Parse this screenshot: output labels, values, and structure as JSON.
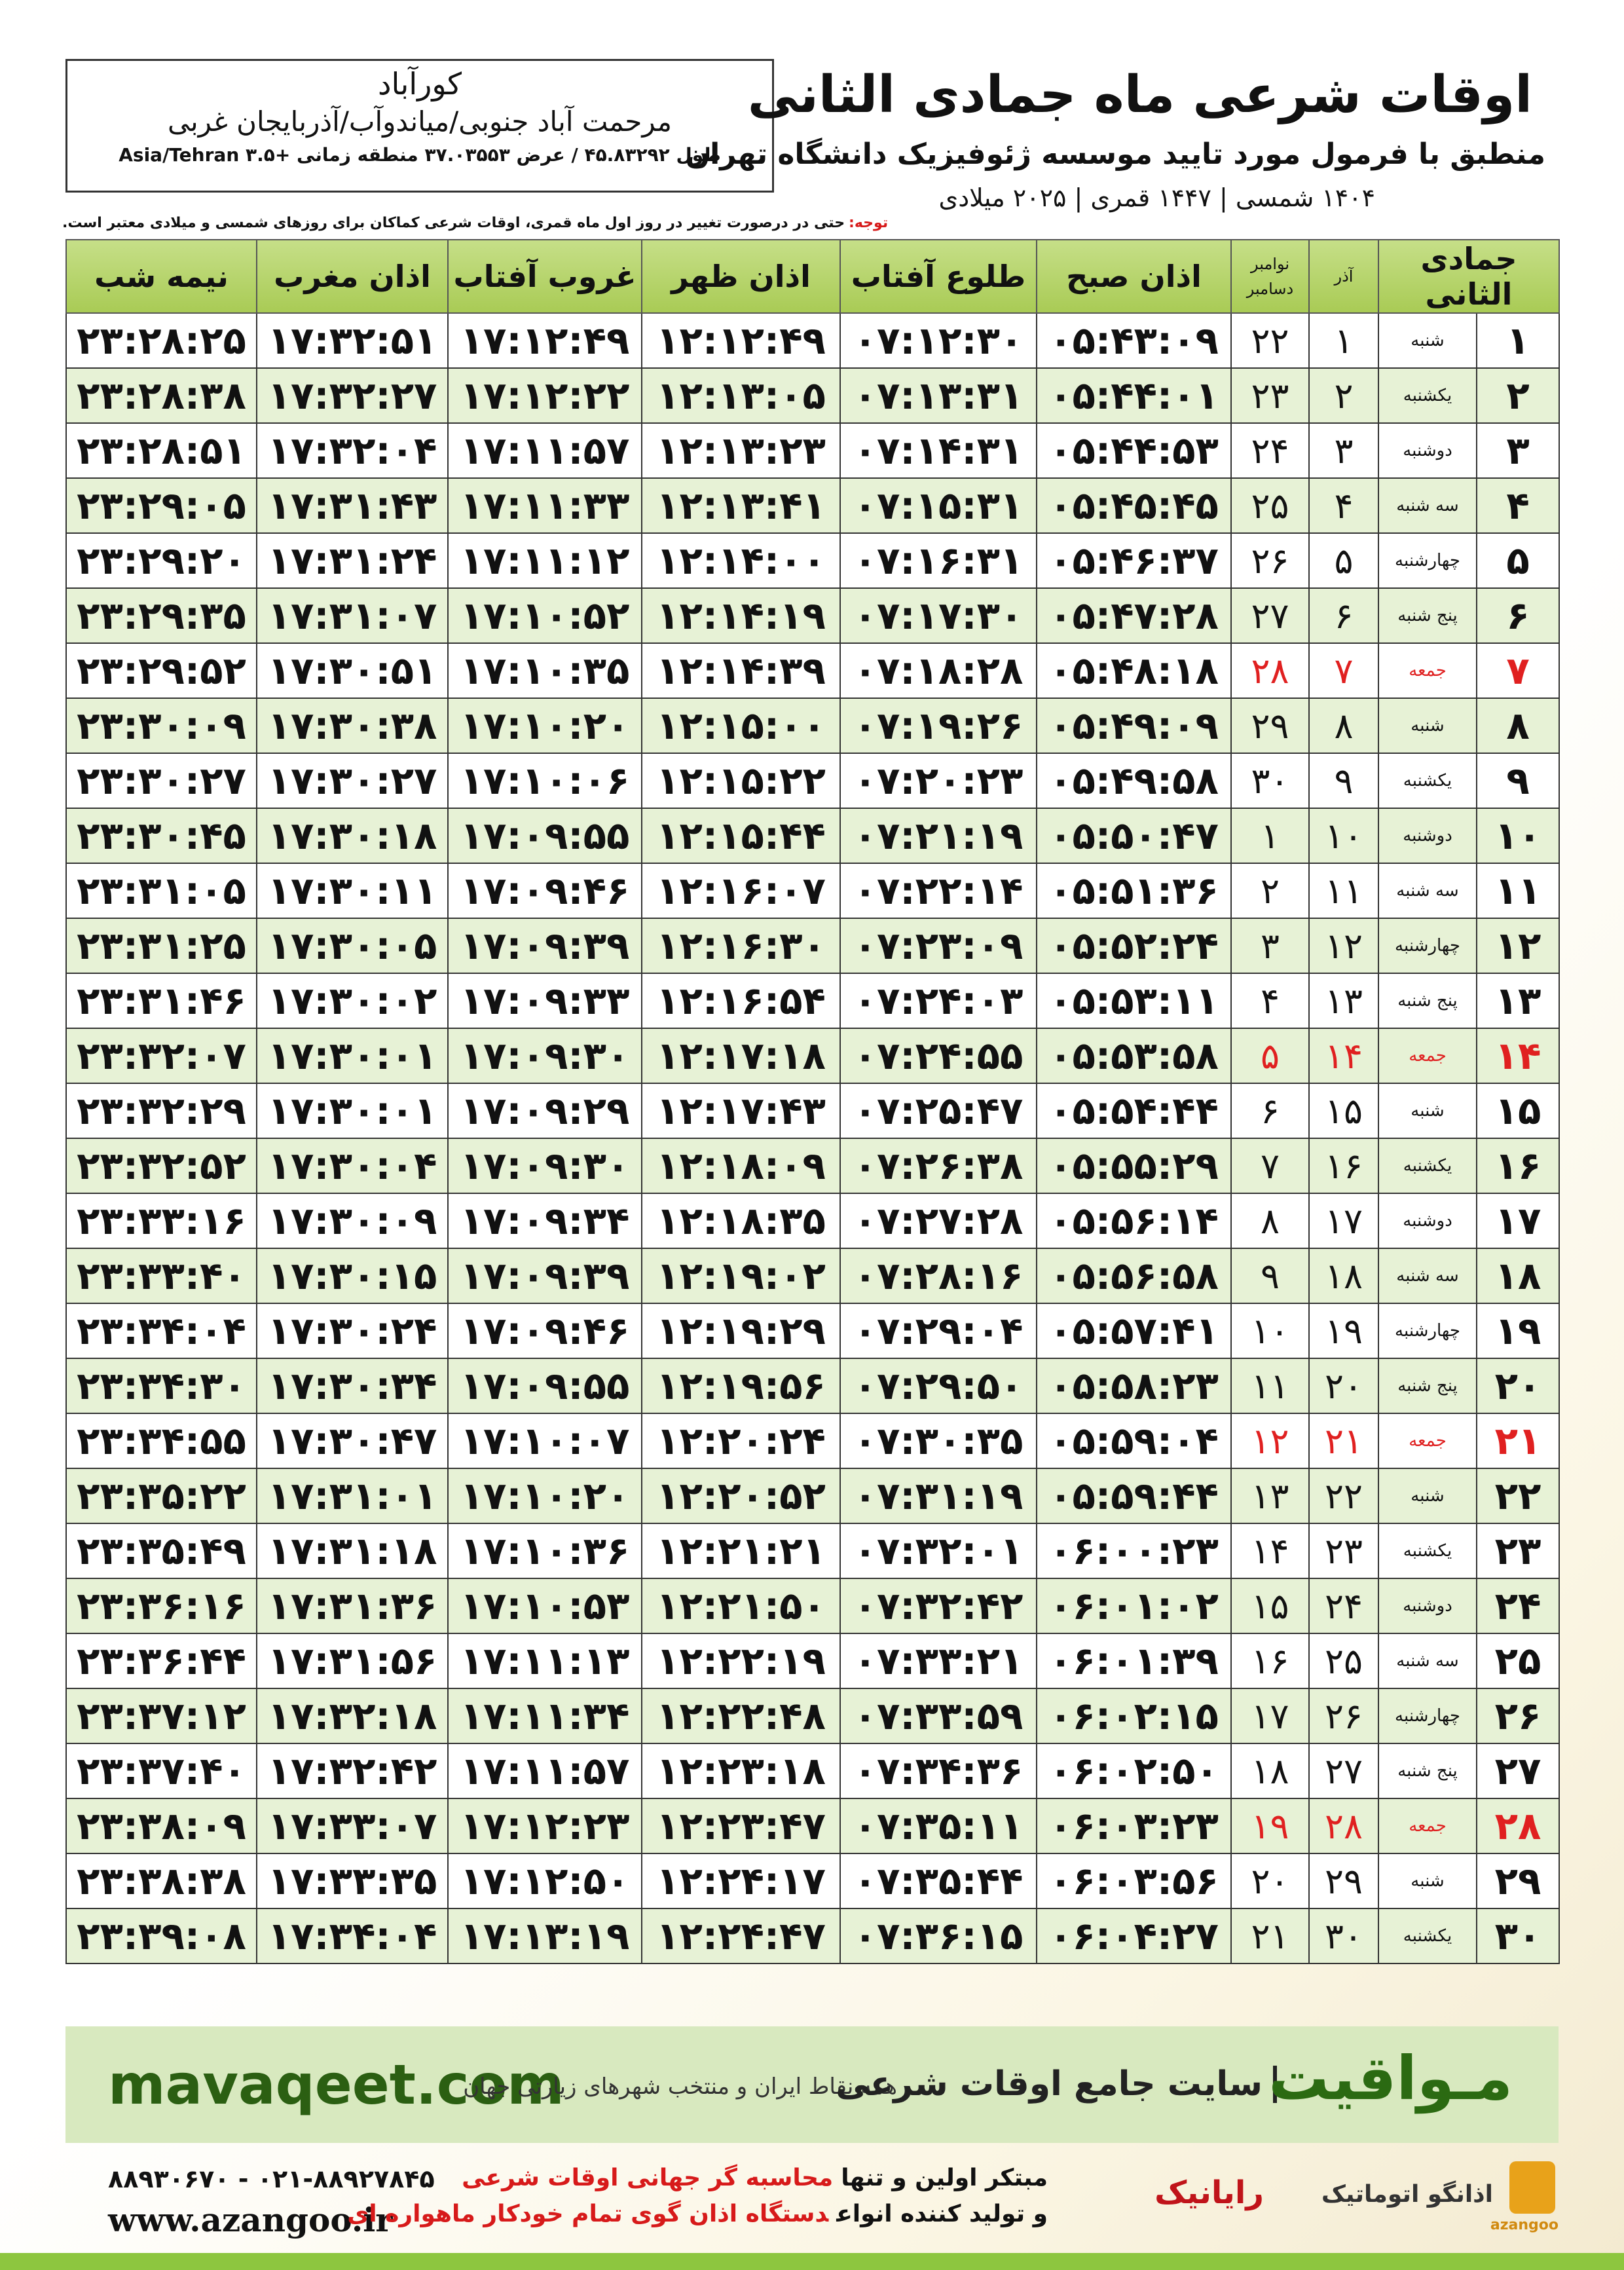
{
  "header": {
    "title": "اوقات شرعی ماه جمادی الثانی",
    "subtitle": "منطبق با فرمول مورد تایید موسسه ژئوفیزیک دانشگاه تهران",
    "years": "۱۴۰۴ شمسی | ۱۴۴۷ قمری | ۲۰۲۵ میلادی"
  },
  "location": {
    "city": "کورآباد",
    "address": "مرحمت آباد جنوبی/میاندوآب/آذربایجان غربی",
    "coords": "طول ۴۵.۸۳۲۹۲ / عرض ۳۷.۰۳۵۵۳ منطقه زمانی +۳.۵ Asia/Tehran"
  },
  "note": {
    "label": "توجه:",
    "text": "حتی در درصورت تغییر در روز اول ماه قمری، اوقات شرعی کماکان برای روزهای شمسی و میلادی معتبر است."
  },
  "table": {
    "columns": [
      "جمادی الثانی",
      "آذر",
      [
        "نوامبر",
        "دسامبر"
      ],
      "اذان صبح",
      "طلوع آفتاب",
      "اذان ظهر",
      "غروب آفتاب",
      "اذان مغرب",
      "نیمه شب"
    ],
    "rows": [
      [
        "۱",
        "شنبه",
        "۱",
        "۲۲",
        "۰۵:۴۳:۰۹",
        "۰۷:۱۲:۳۰",
        "۱۲:۱۲:۴۹",
        "۱۷:۱۲:۴۹",
        "۱۷:۳۲:۵۱",
        "۲۳:۲۸:۲۵"
      ],
      [
        "۲",
        "یکشنبه",
        "۲",
        "۲۳",
        "۰۵:۴۴:۰۱",
        "۰۷:۱۳:۳۱",
        "۱۲:۱۳:۰۵",
        "۱۷:۱۲:۲۲",
        "۱۷:۳۲:۲۷",
        "۲۳:۲۸:۳۸"
      ],
      [
        "۳",
        "دوشنبه",
        "۳",
        "۲۴",
        "۰۵:۴۴:۵۳",
        "۰۷:۱۴:۳۱",
        "۱۲:۱۳:۲۳",
        "۱۷:۱۱:۵۷",
        "۱۷:۳۲:۰۴",
        "۲۳:۲۸:۵۱"
      ],
      [
        "۴",
        "سه شنبه",
        "۴",
        "۲۵",
        "۰۵:۴۵:۴۵",
        "۰۷:۱۵:۳۱",
        "۱۲:۱۳:۴۱",
        "۱۷:۱۱:۳۳",
        "۱۷:۳۱:۴۳",
        "۲۳:۲۹:۰۵"
      ],
      [
        "۵",
        "چهارشنبه",
        "۵",
        "۲۶",
        "۰۵:۴۶:۳۷",
        "۰۷:۱۶:۳۱",
        "۱۲:۱۴:۰۰",
        "۱۷:۱۱:۱۲",
        "۱۷:۳۱:۲۴",
        "۲۳:۲۹:۲۰"
      ],
      [
        "۶",
        "پنج شنبه",
        "۶",
        "۲۷",
        "۰۵:۴۷:۲۸",
        "۰۷:۱۷:۳۰",
        "۱۲:۱۴:۱۹",
        "۱۷:۱۰:۵۲",
        "۱۷:۳۱:۰۷",
        "۲۳:۲۹:۳۵"
      ],
      [
        "۷",
        "جمعه",
        "۷",
        "۲۸",
        "۰۵:۴۸:۱۸",
        "۰۷:۱۸:۲۸",
        "۱۲:۱۴:۳۹",
        "۱۷:۱۰:۳۵",
        "۱۷:۳۰:۵۱",
        "۲۳:۲۹:۵۲"
      ],
      [
        "۸",
        "شنبه",
        "۸",
        "۲۹",
        "۰۵:۴۹:۰۹",
        "۰۷:۱۹:۲۶",
        "۱۲:۱۵:۰۰",
        "۱۷:۱۰:۲۰",
        "۱۷:۳۰:۳۸",
        "۲۳:۳۰:۰۹"
      ],
      [
        "۹",
        "یکشنبه",
        "۹",
        "۳۰",
        "۰۵:۴۹:۵۸",
        "۰۷:۲۰:۲۳",
        "۱۲:۱۵:۲۲",
        "۱۷:۱۰:۰۶",
        "۱۷:۳۰:۲۷",
        "۲۳:۳۰:۲۷"
      ],
      [
        "۱۰",
        "دوشنبه",
        "۱۰",
        "۱",
        "۰۵:۵۰:۴۷",
        "۰۷:۲۱:۱۹",
        "۱۲:۱۵:۴۴",
        "۱۷:۰۹:۵۵",
        "۱۷:۳۰:۱۸",
        "۲۳:۳۰:۴۵"
      ],
      [
        "۱۱",
        "سه شنبه",
        "۱۱",
        "۲",
        "۰۵:۵۱:۳۶",
        "۰۷:۲۲:۱۴",
        "۱۲:۱۶:۰۷",
        "۱۷:۰۹:۴۶",
        "۱۷:۳۰:۱۱",
        "۲۳:۳۱:۰۵"
      ],
      [
        "۱۲",
        "چهارشنبه",
        "۱۲",
        "۳",
        "۰۵:۵۲:۲۴",
        "۰۷:۲۳:۰۹",
        "۱۲:۱۶:۳۰",
        "۱۷:۰۹:۳۹",
        "۱۷:۳۰:۰۵",
        "۲۳:۳۱:۲۵"
      ],
      [
        "۱۳",
        "پنج شنبه",
        "۱۳",
        "۴",
        "۰۵:۵۳:۱۱",
        "۰۷:۲۴:۰۳",
        "۱۲:۱۶:۵۴",
        "۱۷:۰۹:۳۳",
        "۱۷:۳۰:۰۲",
        "۲۳:۳۱:۴۶"
      ],
      [
        "۱۴",
        "جمعه",
        "۱۴",
        "۵",
        "۰۵:۵۳:۵۸",
        "۰۷:۲۴:۵۵",
        "۱۲:۱۷:۱۸",
        "۱۷:۰۹:۳۰",
        "۱۷:۳۰:۰۱",
        "۲۳:۳۲:۰۷"
      ],
      [
        "۱۵",
        "شنبه",
        "۱۵",
        "۶",
        "۰۵:۵۴:۴۴",
        "۰۷:۲۵:۴۷",
        "۱۲:۱۷:۴۳",
        "۱۷:۰۹:۲۹",
        "۱۷:۳۰:۰۱",
        "۲۳:۳۲:۲۹"
      ],
      [
        "۱۶",
        "یکشنبه",
        "۱۶",
        "۷",
        "۰۵:۵۵:۲۹",
        "۰۷:۲۶:۳۸",
        "۱۲:۱۸:۰۹",
        "۱۷:۰۹:۳۰",
        "۱۷:۳۰:۰۴",
        "۲۳:۳۲:۵۲"
      ],
      [
        "۱۷",
        "دوشنبه",
        "۱۷",
        "۸",
        "۰۵:۵۶:۱۴",
        "۰۷:۲۷:۲۸",
        "۱۲:۱۸:۳۵",
        "۱۷:۰۹:۳۴",
        "۱۷:۳۰:۰۹",
        "۲۳:۳۳:۱۶"
      ],
      [
        "۱۸",
        "سه شنبه",
        "۱۸",
        "۹",
        "۰۵:۵۶:۵۸",
        "۰۷:۲۸:۱۶",
        "۱۲:۱۹:۰۲",
        "۱۷:۰۹:۳۹",
        "۱۷:۳۰:۱۵",
        "۲۳:۳۳:۴۰"
      ],
      [
        "۱۹",
        "چهارشنبه",
        "۱۹",
        "۱۰",
        "۰۵:۵۷:۴۱",
        "۰۷:۲۹:۰۴",
        "۱۲:۱۹:۲۹",
        "۱۷:۰۹:۴۶",
        "۱۷:۳۰:۲۴",
        "۲۳:۳۴:۰۴"
      ],
      [
        "۲۰",
        "پنج شنبه",
        "۲۰",
        "۱۱",
        "۰۵:۵۸:۲۳",
        "۰۷:۲۹:۵۰",
        "۱۲:۱۹:۵۶",
        "۱۷:۰۹:۵۵",
        "۱۷:۳۰:۳۴",
        "۲۳:۳۴:۳۰"
      ],
      [
        "۲۱",
        "جمعه",
        "۲۱",
        "۱۲",
        "۰۵:۵۹:۰۴",
        "۰۷:۳۰:۳۵",
        "۱۲:۲۰:۲۴",
        "۱۷:۱۰:۰۷",
        "۱۷:۳۰:۴۷",
        "۲۳:۳۴:۵۵"
      ],
      [
        "۲۲",
        "شنبه",
        "۲۲",
        "۱۳",
        "۰۵:۵۹:۴۴",
        "۰۷:۳۱:۱۹",
        "۱۲:۲۰:۵۲",
        "۱۷:۱۰:۲۰",
        "۱۷:۳۱:۰۱",
        "۲۳:۳۵:۲۲"
      ],
      [
        "۲۳",
        "یکشنبه",
        "۲۳",
        "۱۴",
        "۰۶:۰۰:۲۳",
        "۰۷:۳۲:۰۱",
        "۱۲:۲۱:۲۱",
        "۱۷:۱۰:۳۶",
        "۱۷:۳۱:۱۸",
        "۲۳:۳۵:۴۹"
      ],
      [
        "۲۴",
        "دوشنبه",
        "۲۴",
        "۱۵",
        "۰۶:۰۱:۰۲",
        "۰۷:۳۲:۴۲",
        "۱۲:۲۱:۵۰",
        "۱۷:۱۰:۵۳",
        "۱۷:۳۱:۳۶",
        "۲۳:۳۶:۱۶"
      ],
      [
        "۲۵",
        "سه شنبه",
        "۲۵",
        "۱۶",
        "۰۶:۰۱:۳۹",
        "۰۷:۳۳:۲۱",
        "۱۲:۲۲:۱۹",
        "۱۷:۱۱:۱۳",
        "۱۷:۳۱:۵۶",
        "۲۳:۳۶:۴۴"
      ],
      [
        "۲۶",
        "چهارشنبه",
        "۲۶",
        "۱۷",
        "۰۶:۰۲:۱۵",
        "۰۷:۳۳:۵۹",
        "۱۲:۲۲:۴۸",
        "۱۷:۱۱:۳۴",
        "۱۷:۳۲:۱۸",
        "۲۳:۳۷:۱۲"
      ],
      [
        "۲۷",
        "پنج شنبه",
        "۲۷",
        "۱۸",
        "۰۶:۰۲:۵۰",
        "۰۷:۳۴:۳۶",
        "۱۲:۲۳:۱۸",
        "۱۷:۱۱:۵۷",
        "۱۷:۳۲:۴۲",
        "۲۳:۳۷:۴۰"
      ],
      [
        "۲۸",
        "جمعه",
        "۲۸",
        "۱۹",
        "۰۶:۰۳:۲۳",
        "۰۷:۳۵:۱۱",
        "۱۲:۲۳:۴۷",
        "۱۷:۱۲:۲۳",
        "۱۷:۳۳:۰۷",
        "۲۳:۳۸:۰۹"
      ],
      [
        "۲۹",
        "شنبه",
        "۲۹",
        "۲۰",
        "۰۶:۰۳:۵۶",
        "۰۷:۳۵:۴۴",
        "۱۲:۲۴:۱۷",
        "۱۷:۱۲:۵۰",
        "۱۷:۳۳:۳۵",
        "۲۳:۳۸:۳۸"
      ],
      [
        "۳۰",
        "یکشنبه",
        "۳۰",
        "۲۱",
        "۰۶:۰۴:۲۷",
        "۰۷:۳۶:۱۵",
        "۱۲:۲۴:۴۷",
        "۱۷:۱۳:۱۹",
        "۱۷:۳۴:۰۴",
        "۲۳:۳۹:۰۸"
      ]
    ]
  },
  "banner": {
    "brand": "مـواقیت",
    "slogan": "سایت جامع اوقات شرعی",
    "tagline": "همه نقاط ایران و منتخب شهرهای زیارتی جهان",
    "url": "mavaqeet.com"
  },
  "footer": {
    "phones": "۰۲۱-۸۸۹۲۷۸۴۵ - ۸۸۹۳۰۶۷۰",
    "website": "www.azangoo.ir",
    "line1": [
      "مبتکر اولین و تنها",
      "محاسبه گر جهانی اوقات شرعی"
    ],
    "line2": [
      "و تولید کننده انواع",
      "دستگاه اذان گوی تمام خودکار ماهواره ای"
    ],
    "logo1": "رایانیک",
    "logo2": "اذانگو اتوماتیک",
    "logo3": "azangoo"
  }
}
